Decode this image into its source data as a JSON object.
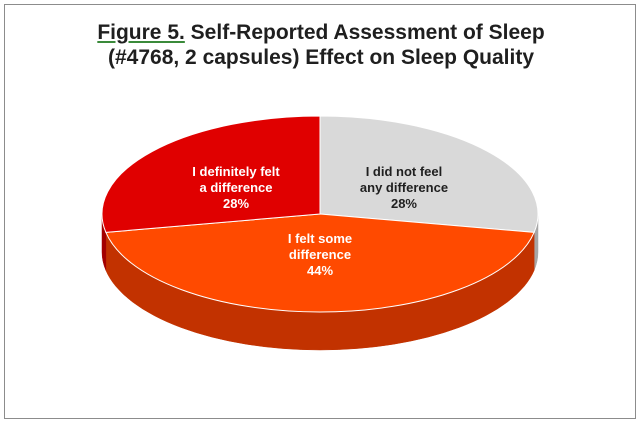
{
  "chart_data": {
    "type": "pie",
    "title_prefix": "Figure 5.",
    "title_line1_rest": " Self-Reported Assessment of Sleep",
    "title_line2": "(#4768, 2 capsules) Effect on Sleep Quality",
    "slices": [
      {
        "name": "I did not feel any difference",
        "label_lines": [
          "I did not feel",
          "any difference"
        ],
        "value": 28,
        "value_text": "28%",
        "color": "#d9d9d9",
        "side_color": "#a6a6a6",
        "label_color": "#1f1f1f"
      },
      {
        "name": "I felt some difference",
        "label_lines": [
          "I felt some",
          "difference"
        ],
        "value": 44,
        "value_text": "44%",
        "color": "#ff4a00",
        "side_color": "#c23200",
        "label_color": "#ffffff"
      },
      {
        "name": "I definitely felt a difference",
        "label_lines": [
          "I definitely felt",
          "a difference"
        ],
        "value": 28,
        "value_text": "28%",
        "color": "#e00000",
        "side_color": "#a30000",
        "label_color": "#ffffff"
      }
    ],
    "legend": "none",
    "style": "3d"
  }
}
